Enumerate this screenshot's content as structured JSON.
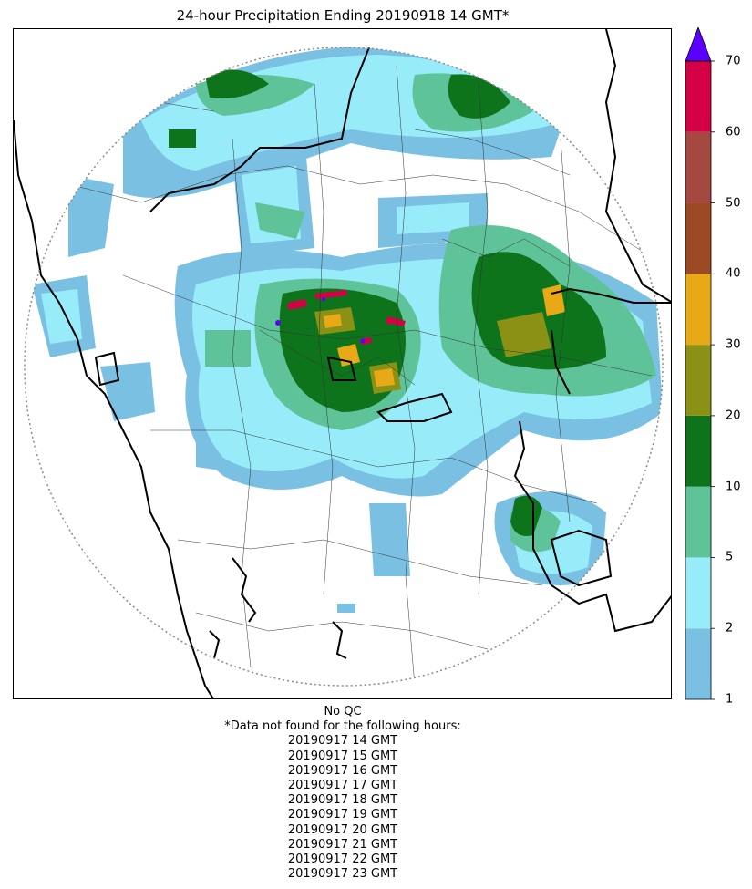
{
  "title": "24-hour Precipitation Ending 20190918 14 GMT*",
  "colorbar": {
    "min": 1,
    "max": 70,
    "extend": "max",
    "overflow_color": "#5a00ff",
    "bins": [
      {
        "from": 1,
        "to": 2,
        "color": "#7ac0e3"
      },
      {
        "from": 2,
        "to": 5,
        "color": "#98ecfa"
      },
      {
        "from": 5,
        "to": 10,
        "color": "#5fc39a"
      },
      {
        "from": 10,
        "to": 20,
        "color": "#0d741b"
      },
      {
        "from": 20,
        "to": 30,
        "color": "#8b9115"
      },
      {
        "from": 30,
        "to": 40,
        "color": "#e8a917"
      },
      {
        "from": 40,
        "to": 50,
        "color": "#9b4a23"
      },
      {
        "from": 50,
        "to": 60,
        "color": "#a44840"
      },
      {
        "from": 60,
        "to": 70,
        "color": "#d40046"
      }
    ],
    "tick_labels": [
      "1",
      "2",
      "5",
      "10",
      "20",
      "30",
      "40",
      "50",
      "60",
      "70"
    ]
  },
  "footnote": {
    "qc": "No QC",
    "header": "*Data not found for the following hours:",
    "missing_hours": [
      "20190917 14 GMT",
      "20190917 15 GMT",
      "20190917 16 GMT",
      "20190917 17 GMT",
      "20190917 18 GMT",
      "20190917 19 GMT",
      "20190917 20 GMT",
      "20190917 21 GMT",
      "20190917 22 GMT",
      "20190917 23 GMT"
    ]
  }
}
